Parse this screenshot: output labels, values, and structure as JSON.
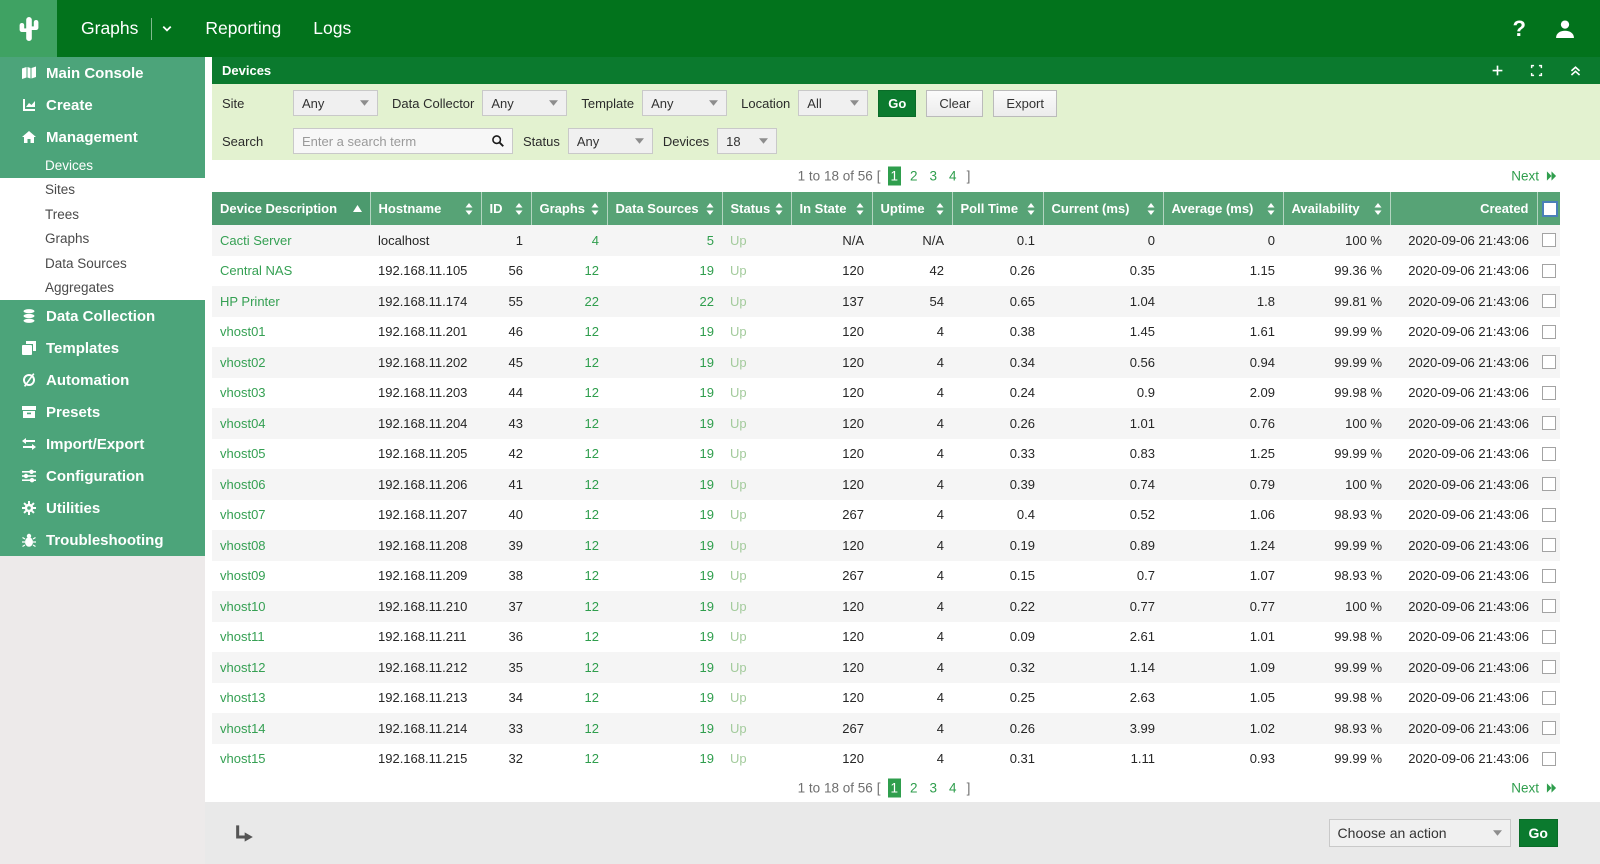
{
  "colors": {
    "top_bar_green": "#02731c",
    "logo_tile_green": "#3fa263",
    "sidebar_green": "#4ca47a",
    "panel_header_green": "#0b7a2e",
    "filter_bg_green": "#e3f2d0",
    "table_header_green": "#57a376",
    "sorted_header_green": "#4c9a6e",
    "link_green": "#2f9e4d",
    "status_up_green": "#a3cb9c",
    "row_stripe_gray": "#f5f5f5",
    "checkbox_focus_blue": "#4a80b8"
  },
  "nav": {
    "tabs": [
      {
        "label": "Graphs",
        "has_dropdown": true
      },
      {
        "label": "Reporting",
        "has_dropdown": false
      },
      {
        "label": "Logs",
        "has_dropdown": false
      }
    ]
  },
  "sidebar": {
    "items": [
      {
        "label": "Main Console",
        "icon": "map-icon",
        "type": "header",
        "selected": false
      },
      {
        "label": "Create",
        "icon": "chart-icon",
        "type": "header",
        "selected": false
      },
      {
        "label": "Management",
        "icon": "home-icon",
        "type": "header",
        "selected": false
      },
      {
        "label": "Devices",
        "icon": "",
        "type": "subitem",
        "selected": true
      },
      {
        "label": "Sites",
        "icon": "",
        "type": "subitem",
        "selected": false
      },
      {
        "label": "Trees",
        "icon": "",
        "type": "subitem",
        "selected": false
      },
      {
        "label": "Graphs",
        "icon": "",
        "type": "subitem",
        "selected": false
      },
      {
        "label": "Data Sources",
        "icon": "",
        "type": "subitem",
        "selected": false
      },
      {
        "label": "Aggregates",
        "icon": "",
        "type": "subitem",
        "selected": false
      },
      {
        "label": "Data Collection",
        "icon": "database-icon",
        "type": "header",
        "selected": false
      },
      {
        "label": "Templates",
        "icon": "templates-icon",
        "type": "header",
        "selected": false
      },
      {
        "label": "Automation",
        "icon": "automation-icon",
        "type": "header",
        "selected": false
      },
      {
        "label": "Presets",
        "icon": "presets-icon",
        "type": "header",
        "selected": false
      },
      {
        "label": "Import/Export",
        "icon": "import-export-icon",
        "type": "header",
        "selected": false
      },
      {
        "label": "Configuration",
        "icon": "configuration-icon",
        "type": "header",
        "selected": false
      },
      {
        "label": "Utilities",
        "icon": "utilities-icon",
        "type": "header",
        "selected": false
      },
      {
        "label": "Troubleshooting",
        "icon": "troubleshooting-icon",
        "type": "header",
        "selected": false
      }
    ]
  },
  "panel": {
    "title": "Devices"
  },
  "filters": {
    "selects": [
      {
        "label": "Site",
        "value": "Any"
      },
      {
        "label": "Data Collector",
        "value": "Any"
      },
      {
        "label": "Template",
        "value": "Any"
      },
      {
        "label": "Location",
        "value": "All"
      }
    ],
    "buttons": {
      "go": "Go",
      "clear": "Clear",
      "export": "Export"
    },
    "search": {
      "label": "Search",
      "placeholder": "Enter a search term",
      "value": ""
    },
    "status": {
      "label": "Status",
      "value": "Any"
    },
    "devices": {
      "label": "Devices",
      "value": "18"
    }
  },
  "pagination": {
    "summary": "1 to 18 of 56",
    "bracket_open": "[",
    "bracket_close": "]",
    "pages": [
      "1",
      "2",
      "3",
      "4"
    ],
    "current_page": "1",
    "next_label": "Next"
  },
  "table": {
    "columns": [
      {
        "label": "Device Description",
        "sort": "asc"
      },
      {
        "label": "Hostname",
        "sort": "both"
      },
      {
        "label": "ID",
        "sort": "both"
      },
      {
        "label": "Graphs",
        "sort": "both"
      },
      {
        "label": "Data Sources",
        "sort": "both"
      },
      {
        "label": "Status",
        "sort": "both"
      },
      {
        "label": "In State",
        "sort": "both"
      },
      {
        "label": "Uptime",
        "sort": "both"
      },
      {
        "label": "Poll Time",
        "sort": "both"
      },
      {
        "label": "Current (ms)",
        "sort": "both"
      },
      {
        "label": "Average (ms)",
        "sort": "both"
      },
      {
        "label": "Availability",
        "sort": "both"
      },
      {
        "label": "Created",
        "sort": "none"
      }
    ],
    "rows": [
      {
        "device": "Cacti Server",
        "hostname": "localhost",
        "id": "1",
        "graphs": "4",
        "data_sources": "5",
        "status": "Up",
        "in_state": "N/A",
        "uptime": "N/A",
        "poll_time": "0.1",
        "current_ms": "0",
        "average_ms": "0",
        "availability": "100 %",
        "created": "2020-09-06 21:43:06"
      },
      {
        "device": "Central NAS",
        "hostname": "192.168.11.105",
        "id": "56",
        "graphs": "12",
        "data_sources": "19",
        "status": "Up",
        "in_state": "120",
        "uptime": "42",
        "poll_time": "0.26",
        "current_ms": "0.35",
        "average_ms": "1.15",
        "availability": "99.36 %",
        "created": "2020-09-06 21:43:06"
      },
      {
        "device": "HP Printer",
        "hostname": "192.168.11.174",
        "id": "55",
        "graphs": "22",
        "data_sources": "22",
        "status": "Up",
        "in_state": "137",
        "uptime": "54",
        "poll_time": "0.65",
        "current_ms": "1.04",
        "average_ms": "1.8",
        "availability": "99.81 %",
        "created": "2020-09-06 21:43:06"
      },
      {
        "device": "vhost01",
        "hostname": "192.168.11.201",
        "id": "46",
        "graphs": "12",
        "data_sources": "19",
        "status": "Up",
        "in_state": "120",
        "uptime": "4",
        "poll_time": "0.38",
        "current_ms": "1.45",
        "average_ms": "1.61",
        "availability": "99.99 %",
        "created": "2020-09-06 21:43:06"
      },
      {
        "device": "vhost02",
        "hostname": "192.168.11.202",
        "id": "45",
        "graphs": "12",
        "data_sources": "19",
        "status": "Up",
        "in_state": "120",
        "uptime": "4",
        "poll_time": "0.34",
        "current_ms": "0.56",
        "average_ms": "0.94",
        "availability": "99.99 %",
        "created": "2020-09-06 21:43:06"
      },
      {
        "device": "vhost03",
        "hostname": "192.168.11.203",
        "id": "44",
        "graphs": "12",
        "data_sources": "19",
        "status": "Up",
        "in_state": "120",
        "uptime": "4",
        "poll_time": "0.24",
        "current_ms": "0.9",
        "average_ms": "2.09",
        "availability": "99.98 %",
        "created": "2020-09-06 21:43:06"
      },
      {
        "device": "vhost04",
        "hostname": "192.168.11.204",
        "id": "43",
        "graphs": "12",
        "data_sources": "19",
        "status": "Up",
        "in_state": "120",
        "uptime": "4",
        "poll_time": "0.26",
        "current_ms": "1.01",
        "average_ms": "0.76",
        "availability": "100 %",
        "created": "2020-09-06 21:43:06"
      },
      {
        "device": "vhost05",
        "hostname": "192.168.11.205",
        "id": "42",
        "graphs": "12",
        "data_sources": "19",
        "status": "Up",
        "in_state": "120",
        "uptime": "4",
        "poll_time": "0.33",
        "current_ms": "0.83",
        "average_ms": "1.25",
        "availability": "99.99 %",
        "created": "2020-09-06 21:43:06"
      },
      {
        "device": "vhost06",
        "hostname": "192.168.11.206",
        "id": "41",
        "graphs": "12",
        "data_sources": "19",
        "status": "Up",
        "in_state": "120",
        "uptime": "4",
        "poll_time": "0.39",
        "current_ms": "0.74",
        "average_ms": "0.79",
        "availability": "100 %",
        "created": "2020-09-06 21:43:06"
      },
      {
        "device": "vhost07",
        "hostname": "192.168.11.207",
        "id": "40",
        "graphs": "12",
        "data_sources": "19",
        "status": "Up",
        "in_state": "267",
        "uptime": "4",
        "poll_time": "0.4",
        "current_ms": "0.52",
        "average_ms": "1.06",
        "availability": "98.93 %",
        "created": "2020-09-06 21:43:06"
      },
      {
        "device": "vhost08",
        "hostname": "192.168.11.208",
        "id": "39",
        "graphs": "12",
        "data_sources": "19",
        "status": "Up",
        "in_state": "120",
        "uptime": "4",
        "poll_time": "0.19",
        "current_ms": "0.89",
        "average_ms": "1.24",
        "availability": "99.99 %",
        "created": "2020-09-06 21:43:06"
      },
      {
        "device": "vhost09",
        "hostname": "192.168.11.209",
        "id": "38",
        "graphs": "12",
        "data_sources": "19",
        "status": "Up",
        "in_state": "267",
        "uptime": "4",
        "poll_time": "0.15",
        "current_ms": "0.7",
        "average_ms": "1.07",
        "availability": "98.93 %",
        "created": "2020-09-06 21:43:06"
      },
      {
        "device": "vhost10",
        "hostname": "192.168.11.210",
        "id": "37",
        "graphs": "12",
        "data_sources": "19",
        "status": "Up",
        "in_state": "120",
        "uptime": "4",
        "poll_time": "0.22",
        "current_ms": "0.77",
        "average_ms": "0.77",
        "availability": "100 %",
        "created": "2020-09-06 21:43:06"
      },
      {
        "device": "vhost11",
        "hostname": "192.168.11.211",
        "id": "36",
        "graphs": "12",
        "data_sources": "19",
        "status": "Up",
        "in_state": "120",
        "uptime": "4",
        "poll_time": "0.09",
        "current_ms": "2.61",
        "average_ms": "1.01",
        "availability": "99.98 %",
        "created": "2020-09-06 21:43:06"
      },
      {
        "device": "vhost12",
        "hostname": "192.168.11.212",
        "id": "35",
        "graphs": "12",
        "data_sources": "19",
        "status": "Up",
        "in_state": "120",
        "uptime": "4",
        "poll_time": "0.32",
        "current_ms": "1.14",
        "average_ms": "1.09",
        "availability": "99.99 %",
        "created": "2020-09-06 21:43:06"
      },
      {
        "device": "vhost13",
        "hostname": "192.168.11.213",
        "id": "34",
        "graphs": "12",
        "data_sources": "19",
        "status": "Up",
        "in_state": "120",
        "uptime": "4",
        "poll_time": "0.25",
        "current_ms": "2.63",
        "average_ms": "1.05",
        "availability": "99.98 %",
        "created": "2020-09-06 21:43:06"
      },
      {
        "device": "vhost14",
        "hostname": "192.168.11.214",
        "id": "33",
        "graphs": "12",
        "data_sources": "19",
        "status": "Up",
        "in_state": "267",
        "uptime": "4",
        "poll_time": "0.26",
        "current_ms": "3.99",
        "average_ms": "1.02",
        "availability": "98.93 %",
        "created": "2020-09-06 21:43:06"
      },
      {
        "device": "vhost15",
        "hostname": "192.168.11.215",
        "id": "32",
        "graphs": "12",
        "data_sources": "19",
        "status": "Up",
        "in_state": "120",
        "uptime": "4",
        "poll_time": "0.31",
        "current_ms": "1.11",
        "average_ms": "0.93",
        "availability": "99.99 %",
        "created": "2020-09-06 21:43:06"
      }
    ]
  },
  "action_bar": {
    "action_label": "Choose an action",
    "go_label": "Go"
  }
}
